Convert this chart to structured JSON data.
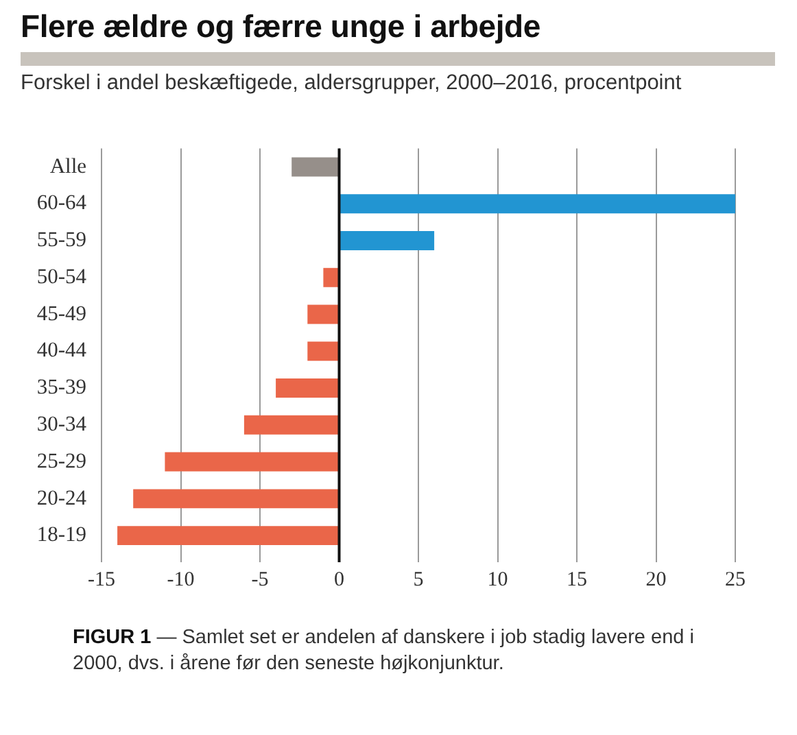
{
  "chart_data": {
    "type": "bar",
    "orientation": "horizontal",
    "title": "Flere ældre og færre unge i arbejde",
    "subtitle": "Forskel i andel beskæftigede, aldersgrupper, 2000–2016, procentpoint",
    "categories": [
      "Alle",
      "60-64",
      "55-59",
      "50-54",
      "45-49",
      "40-44",
      "35-39",
      "30-34",
      "25-29",
      "20-24",
      "18-19"
    ],
    "values": [
      -3,
      25,
      6,
      -1,
      -2,
      -2,
      -4,
      -6,
      -11,
      -13,
      -14
    ],
    "colors": [
      "#968f8a",
      "#2295d2",
      "#2295d2",
      "#ea6649",
      "#ea6649",
      "#ea6649",
      "#ea6649",
      "#ea6649",
      "#ea6649",
      "#ea6649",
      "#ea6649"
    ],
    "xlim": [
      -15,
      25
    ],
    "xticks": [
      -15,
      -10,
      -5,
      0,
      5,
      10,
      15,
      20,
      25
    ],
    "grid": "x",
    "legend": false,
    "annotations": [
      "FIGUR 1 — Samlet set er andelen af danskere i job stadig lavere end i 2000, dvs. i årene før den seneste højkonjunktur."
    ]
  }
}
